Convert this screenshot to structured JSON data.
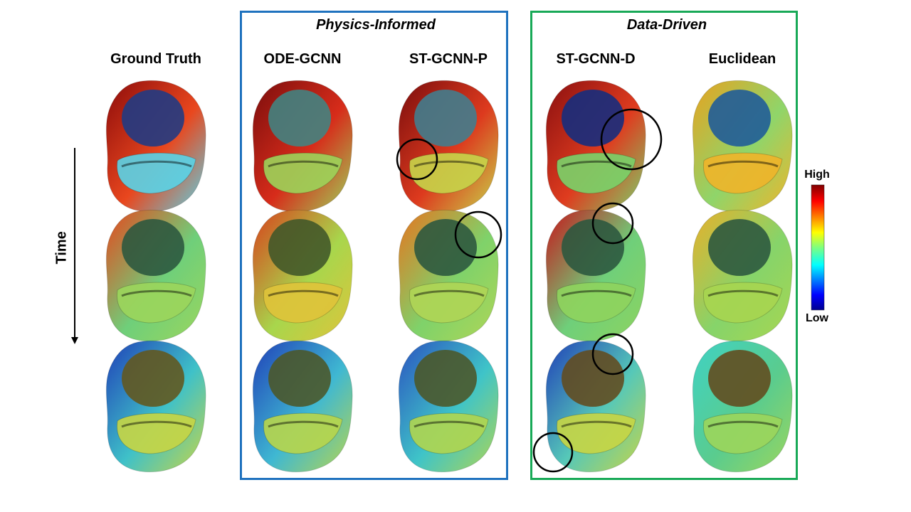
{
  "groups": {
    "physics": {
      "title": "Physics-Informed",
      "color": "#1f72be"
    },
    "data": {
      "title": "Data-Driven",
      "color": "#18a957"
    }
  },
  "columns": [
    {
      "title": "Ground Truth"
    },
    {
      "title": "ODE-GCNN"
    },
    {
      "title": "ST-GCNN-P"
    },
    {
      "title": "ST-GCNN-D"
    },
    {
      "title": "Euclidean"
    }
  ],
  "time_label": "Time",
  "colorbar": {
    "high_label": "High",
    "low_label": "Low",
    "colormap": "jet"
  },
  "panels": [
    {
      "column": 0,
      "row": 0,
      "base": "#e9471e",
      "hot": "#8c0b0b",
      "cavity": "#2b52b8",
      "ring": "#5ad4e8"
    },
    {
      "column": 1,
      "row": 0,
      "base": "#d72c1a",
      "hot": "#7a0d0d",
      "cavity": "#5bb9b6",
      "ring": "#9dd45a"
    },
    {
      "column": 2,
      "row": 0,
      "base": "#dd3a1e",
      "hot": "#7a0d0d",
      "cavity": "#5bb0c8",
      "ring": "#c7d54a"
    },
    {
      "column": 3,
      "row": 0,
      "base": "#df3c1f",
      "hot": "#8a0f10",
      "cavity": "#1c3fb2",
      "ring": "#7ad36a"
    },
    {
      "column": 4,
      "row": 0,
      "base": "#8fd56a",
      "hot": "#e8a21e",
      "cavity": "#2a7fd6",
      "ring": "#f0b52a"
    },
    {
      "column": 0,
      "row": 1,
      "base": "#6fcf7a",
      "hot": "#e8461c",
      "cavity": "#3d7a58",
      "ring": "#9cd65c"
    },
    {
      "column": 1,
      "row": 1,
      "base": "#a8d64c",
      "hot": "#d8401b",
      "cavity": "#5b7a3a",
      "ring": "#e0c43a"
    },
    {
      "column": 2,
      "row": 1,
      "base": "#7fd26a",
      "hot": "#e8741e",
      "cavity": "#3d7a58",
      "ring": "#b0d656"
    },
    {
      "column": 3,
      "row": 1,
      "base": "#6fcf7a",
      "hot": "#c8141a",
      "cavity": "#3d7a58",
      "ring": "#8fd45e"
    },
    {
      "column": 4,
      "row": 1,
      "base": "#86d46a",
      "hot": "#e8b02a",
      "cavity": "#3d7a58",
      "ring": "#a8d650"
    },
    {
      "column": 0,
      "row": 2,
      "base": "#3fc1c8",
      "hot": "#1f3fb8",
      "cavity": "#8a7a2a",
      "ring": "#c8d644"
    },
    {
      "column": 1,
      "row": 2,
      "base": "#3fb8d2",
      "hot": "#1f3fb8",
      "cavity": "#6a7a3a",
      "ring": "#b8d64c"
    },
    {
      "column": 2,
      "row": 2,
      "base": "#3fc4c8",
      "hot": "#2a52c0",
      "cavity": "#6a7a3a",
      "ring": "#b0d650"
    },
    {
      "column": 3,
      "row": 2,
      "base": "#56c8b8",
      "hot": "#1f3fb8",
      "cavity": "#8a6a2a",
      "ring": "#c8d644"
    },
    {
      "column": 4,
      "row": 2,
      "base": "#5acc8e",
      "hot": "#3fd2c4",
      "cavity": "#8a6a2a",
      "ring": "#9cd65c"
    }
  ],
  "highlight_circles": [
    {
      "column": 2,
      "row": 0,
      "location": "left-middle"
    },
    {
      "column": 3,
      "row": 0,
      "location": "right-upper"
    },
    {
      "column": 2,
      "row": 1,
      "location": "right-upper"
    },
    {
      "column": 3,
      "row": 1,
      "location": "top"
    },
    {
      "column": 3,
      "row": 2,
      "location": "top"
    },
    {
      "column": 3,
      "row": 2,
      "location": "bottom-left"
    }
  ]
}
